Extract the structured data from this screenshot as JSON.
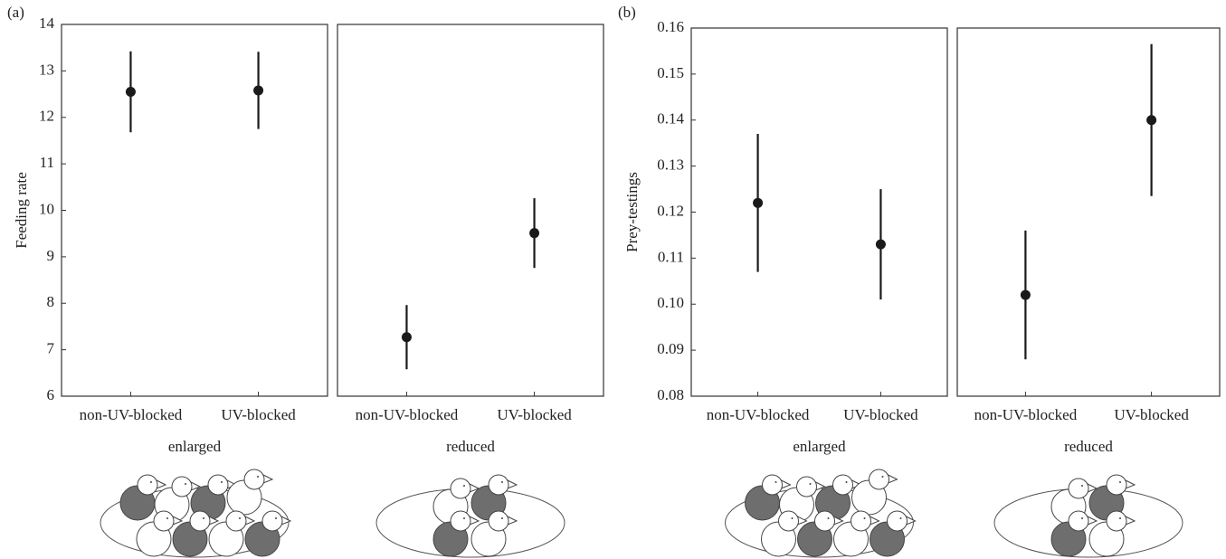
{
  "chart_data": [
    {
      "type": "errorbar",
      "panel_label": "(a)",
      "ylabel": "Feeding rate",
      "xlabel": "enlarged",
      "categories": [
        "non-UV-blocked",
        "UV-blocked"
      ],
      "values": [
        12.55,
        12.58
      ],
      "errors": [
        0.87,
        0.83
      ],
      "ylim": [
        6,
        14
      ],
      "yticks": [
        6,
        7,
        8,
        9,
        10,
        11,
        12,
        13,
        14
      ],
      "color": "#1a1a1a"
    },
    {
      "type": "errorbar",
      "xlabel": "reduced",
      "categories": [
        "non-UV-blocked",
        "UV-blocked"
      ],
      "values": [
        7.27,
        9.51
      ],
      "errors": [
        0.69,
        0.75
      ],
      "ylim": [
        6,
        14
      ],
      "color": "#1a1a1a"
    },
    {
      "type": "errorbar",
      "panel_label": "(b)",
      "ylabel": "Prey-testings",
      "xlabel": "enlarged",
      "categories": [
        "non-UV-blocked",
        "UV-blocked"
      ],
      "values": [
        0.122,
        0.113
      ],
      "errors": [
        0.015,
        0.012
      ],
      "ylim": [
        0.08,
        0.16
      ],
      "yticks": [
        0.08,
        0.09,
        {
          "value": 0.1,
          "label": "0.10"
        },
        0.11,
        0.12,
        0.13,
        0.14,
        0.15,
        0.16
      ],
      "color": "#1a1a1a"
    },
    {
      "type": "errorbar",
      "xlabel": "reduced",
      "categories": [
        "non-UV-blocked",
        "UV-blocked"
      ],
      "values": [
        0.102,
        0.14
      ],
      "errors": [
        0.014,
        0.0165
      ],
      "ylim": [
        0.08,
        0.16
      ],
      "color": "#1a1a1a"
    }
  ]
}
